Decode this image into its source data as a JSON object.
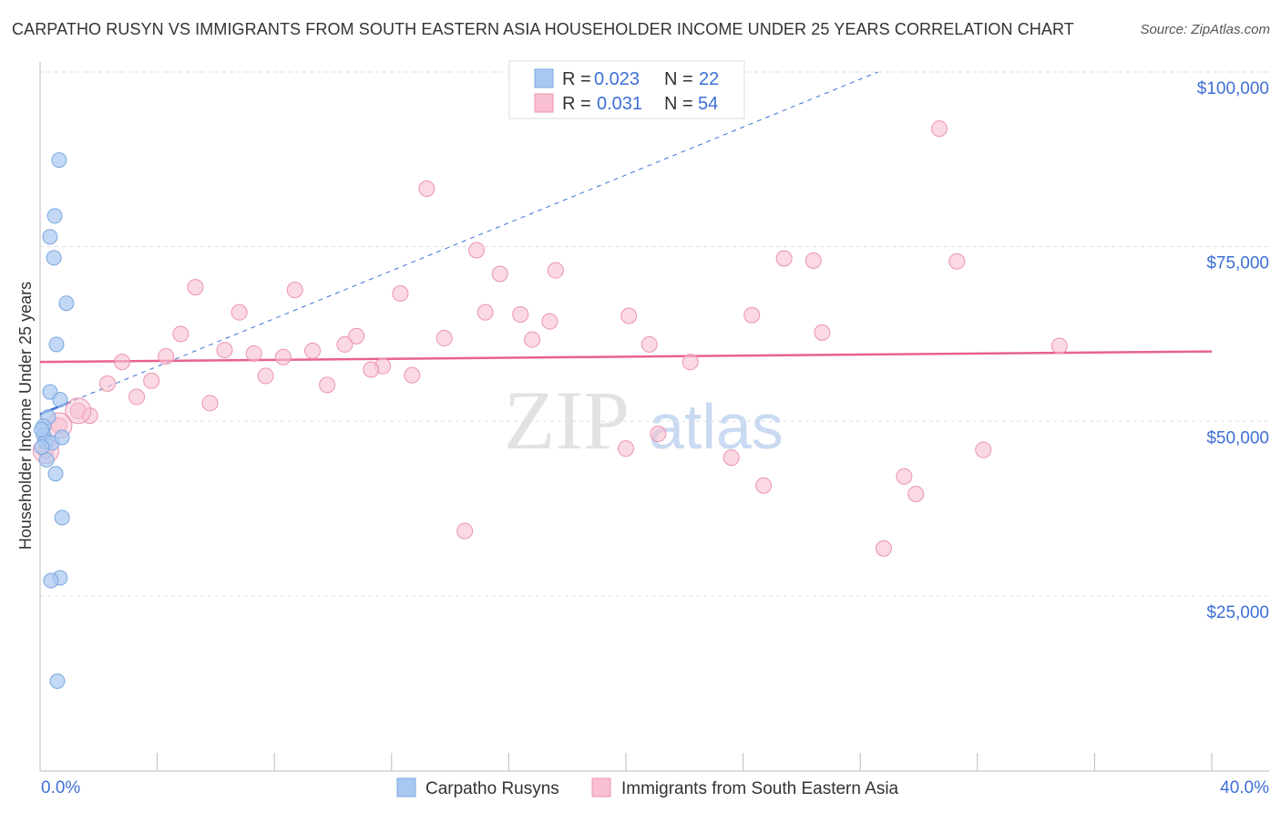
{
  "title": "CARPATHO RUSYN VS IMMIGRANTS FROM SOUTH EASTERN ASIA HOUSEHOLDER INCOME UNDER 25 YEARS CORRELATION CHART",
  "source": "Source: ZipAtlas.com",
  "watermark": "ZIPatlas",
  "colors": {
    "blue_fill": "#a9c8f0",
    "blue_stroke": "#7aa7e0",
    "blue_line": "#3d6fd6",
    "pink_fill": "#f8c0d1",
    "pink_stroke": "#eb93b0",
    "pink_line": "#e8628f",
    "accent_text": "#3d6fd6"
  },
  "chart_data": {
    "type": "scatter",
    "title": "CARPATHO RUSYN VS IMMIGRANTS FROM SOUTH EASTERN ASIA HOUSEHOLDER INCOME UNDER 25 YEARS CORRELATION CHART",
    "xlabel": "",
    "ylabel": "Householder Income Under 25 years",
    "xlim": [
      0,
      40
    ],
    "ylim": [
      0,
      100000
    ],
    "x_tick_labels": [
      "0.0%",
      "40.0%"
    ],
    "y_ticks": [
      25000,
      50000,
      75000,
      100000
    ],
    "y_tick_labels": [
      "$25,000",
      "$50,000",
      "$75,000",
      "$100,000"
    ],
    "grid": true,
    "legend": {
      "placement": "top-center",
      "entries": [
        {
          "r_label": "R =",
          "r": "0.023",
          "n_label": "N =",
          "n": "22"
        },
        {
          "r_label": "R =",
          "r": "0.031",
          "n_label": "N =",
          "n": "54"
        }
      ]
    },
    "series": [
      {
        "name": "Carpatho Rusyns",
        "color": "#a9c8f0",
        "trend": {
          "x0": 0,
          "y0": 51000,
          "x1": 28.6,
          "y1": 100000,
          "solid_until_x": 1.05
        },
        "points": [
          [
            0.65,
            87400
          ],
          [
            0.5,
            79400
          ],
          [
            0.34,
            76400
          ],
          [
            0.47,
            73400
          ],
          [
            0.9,
            66900
          ],
          [
            0.56,
            61000
          ],
          [
            0.34,
            54200
          ],
          [
            0.68,
            53100
          ],
          [
            0.28,
            50600
          ],
          [
            0.12,
            49300
          ],
          [
            0.12,
            48000
          ],
          [
            0.19,
            47100
          ],
          [
            0.4,
            46900
          ],
          [
            0.75,
            47700
          ],
          [
            0.22,
            44500
          ],
          [
            0.53,
            42500
          ],
          [
            0.75,
            36200
          ],
          [
            0.68,
            27600
          ],
          [
            0.37,
            27200
          ],
          [
            0.59,
            12800
          ],
          [
            0.06,
            46300
          ],
          [
            0.05,
            48800
          ]
        ]
      },
      {
        "name": "Immigrants from South Eastern Asia",
        "color": "#f8c0d1",
        "trend": {
          "x0": 0,
          "y0": 58500,
          "x1": 40,
          "y1": 60000
        },
        "points": [
          [
            30.7,
            91900
          ],
          [
            13.2,
            83300
          ],
          [
            14.9,
            74500
          ],
          [
            25.4,
            73300
          ],
          [
            26.4,
            73000
          ],
          [
            31.3,
            72900
          ],
          [
            15.7,
            71100
          ],
          [
            17.6,
            71600
          ],
          [
            5.3,
            69200
          ],
          [
            8.7,
            68800
          ],
          [
            12.3,
            68300
          ],
          [
            6.8,
            65600
          ],
          [
            15.2,
            65600
          ],
          [
            16.4,
            65300
          ],
          [
            20.1,
            65100
          ],
          [
            24.3,
            65200
          ],
          [
            17.4,
            64300
          ],
          [
            4.8,
            62500
          ],
          [
            26.7,
            62700
          ],
          [
            10.8,
            62200
          ],
          [
            13.8,
            61900
          ],
          [
            16.8,
            61700
          ],
          [
            20.8,
            61000
          ],
          [
            10.4,
            61000
          ],
          [
            34.8,
            60800
          ],
          [
            6.3,
            60200
          ],
          [
            7.3,
            59700
          ],
          [
            9.3,
            60100
          ],
          [
            4.3,
            59300
          ],
          [
            8.3,
            59200
          ],
          [
            2.8,
            58500
          ],
          [
            22.2,
            58500
          ],
          [
            11.7,
            57900
          ],
          [
            11.3,
            57400
          ],
          [
            7.7,
            56500
          ],
          [
            12.7,
            56600
          ],
          [
            3.8,
            55800
          ],
          [
            2.3,
            55400
          ],
          [
            9.8,
            55200
          ],
          [
            3.3,
            53500
          ],
          [
            5.8,
            52600
          ],
          [
            1.3,
            51500
          ],
          [
            1.7,
            50800
          ],
          [
            0.65,
            49400
          ],
          [
            0.2,
            45800
          ],
          [
            21.1,
            48200
          ],
          [
            20.0,
            46100
          ],
          [
            32.2,
            45900
          ],
          [
            23.6,
            44800
          ],
          [
            29.5,
            42100
          ],
          [
            24.7,
            40800
          ],
          [
            29.9,
            39600
          ],
          [
            14.5,
            34300
          ],
          [
            28.8,
            31800
          ]
        ],
        "large_points": [
          [
            1.3,
            51500
          ],
          [
            0.65,
            49400
          ],
          [
            0.2,
            45800
          ]
        ]
      }
    ]
  }
}
